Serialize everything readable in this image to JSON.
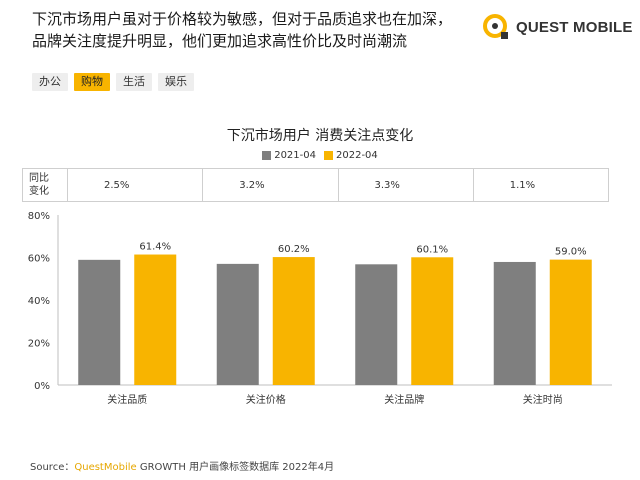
{
  "headline": {
    "line1": "下沉市场用户虽对于价格较为敏感，但对于品质追求也在加深，",
    "line2": "品牌关注度提升明显，他们更加追求高性价比及时尚潮流"
  },
  "brand": {
    "name": "QUEST MOBILE",
    "icon": "q-logo-icon"
  },
  "tags": [
    {
      "label": "办公",
      "active": false
    },
    {
      "label": "购物",
      "active": true
    },
    {
      "label": "生活",
      "active": false
    },
    {
      "label": "娱乐",
      "active": false
    }
  ],
  "yoy": {
    "label_line1": "同比",
    "label_line2": "变化",
    "values": [
      "2.5%",
      "3.2%",
      "3.3%",
      "1.1%"
    ]
  },
  "colors": {
    "series_2021": "#7f7f7f",
    "series_2022": "#f8b400",
    "accent": "#f8b400"
  },
  "chart_data": {
    "type": "bar",
    "title": "下沉市场用户 消费关注点变化",
    "categories": [
      "关注品质",
      "关注价格",
      "关注品牌",
      "关注时尚"
    ],
    "series": [
      {
        "name": "2021-04",
        "values": [
          58.9,
          57.0,
          56.8,
          57.9
        ],
        "labels": [
          "",
          "",
          "",
          ""
        ]
      },
      {
        "name": "2022-04",
        "values": [
          61.4,
          60.2,
          60.1,
          59.0
        ],
        "labels": [
          "61.4%",
          "60.2%",
          "60.1%",
          "59.0%"
        ]
      }
    ],
    "ylim": [
      0,
      80
    ],
    "yticks": [
      "0%",
      "20%",
      "40%",
      "60%",
      "80%"
    ],
    "ytick_values": [
      0,
      20,
      40,
      60,
      80
    ],
    "grid": false,
    "legend": "top-center"
  },
  "source": {
    "prefix": "Source：",
    "brand": "QuestMobile",
    "rest": " GROWTH 用户画像标签数据库 2022年4月"
  }
}
